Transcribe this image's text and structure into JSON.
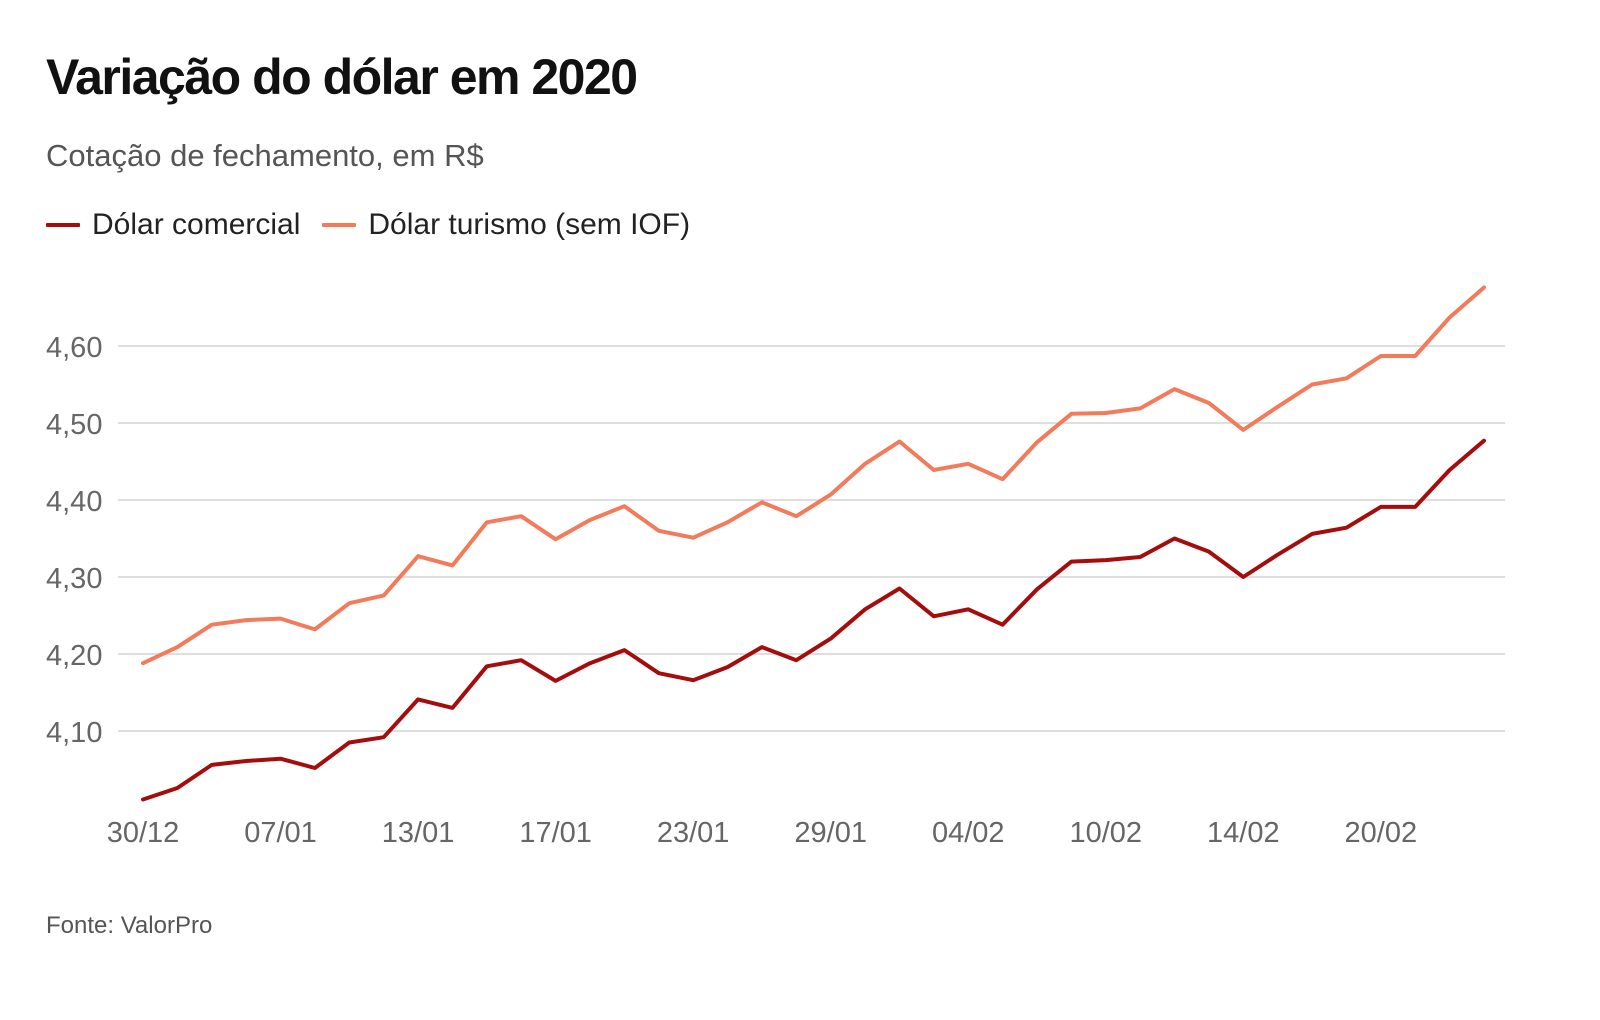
{
  "title": "Variação do dólar em 2020",
  "subtitle": "Cotação de fechamento, em R$",
  "source": "Fonte: ValorPro",
  "colors": {
    "comercial": "#a50d0d",
    "turismo": "#f47a5c",
    "grid": "#d3d3d3",
    "tick_text": "#666666"
  },
  "legend": {
    "items": [
      {
        "label": "Dólar comercial",
        "color": "#a50d0d"
      },
      {
        "label": "Dólar turismo (sem IOF)",
        "color": "#f47a5c"
      }
    ]
  },
  "chart_data": {
    "type": "line",
    "title": "Variação do dólar em 2020",
    "subtitle": "Cotação de fechamento, em R$",
    "xlabel": "",
    "ylabel": "",
    "grid": true,
    "legend_position": "top-left",
    "ylim": [
      4.0,
      4.68
    ],
    "y_ticks": [
      4.1,
      4.2,
      4.3,
      4.4,
      4.5,
      4.6
    ],
    "y_tick_labels": [
      "4,10",
      "4,20",
      "4,30",
      "4,40",
      "4,50",
      "4,60"
    ],
    "x_tick_labels": [
      "30/12",
      "07/01",
      "13/01",
      "17/01",
      "23/01",
      "29/01",
      "04/02",
      "10/02",
      "14/02",
      "20/02"
    ],
    "x_tick_indices": [
      0,
      4,
      8,
      12,
      16,
      20,
      24,
      28,
      32,
      36
    ],
    "x": [
      "30/12",
      "31/12",
      "02/01",
      "03/01",
      "07/01",
      "08/01",
      "09/01",
      "10/01",
      "13/01",
      "14/01",
      "15/01",
      "16/01",
      "17/01",
      "20/01",
      "21/01",
      "22/01",
      "23/01",
      "24/01",
      "27/01",
      "28/01",
      "29/01",
      "30/01",
      "31/01",
      "03/02",
      "04/02",
      "05/02",
      "06/02",
      "07/02",
      "10/02",
      "11/02",
      "12/02",
      "13/02",
      "14/02",
      "17/02",
      "18/02",
      "19/02",
      "20/02",
      "21/02",
      "25/02",
      "26/02"
    ],
    "series": [
      {
        "name": "Dólar comercial",
        "color": "#a50d0d",
        "values": [
          4.011,
          4.026,
          4.056,
          4.061,
          4.064,
          4.052,
          4.085,
          4.092,
          4.141,
          4.13,
          4.184,
          4.192,
          4.165,
          4.188,
          4.205,
          4.175,
          4.166,
          4.183,
          4.209,
          4.192,
          4.22,
          4.258,
          4.285,
          4.249,
          4.258,
          4.238,
          4.284,
          4.32,
          4.322,
          4.326,
          4.35,
          4.333,
          4.3,
          4.329,
          4.356,
          4.364,
          4.391,
          4.391,
          4.439,
          4.477
        ]
      },
      {
        "name": "Dólar turismo (sem IOF)",
        "color": "#f47a5c",
        "values": [
          4.188,
          4.209,
          4.238,
          4.244,
          4.246,
          4.232,
          4.266,
          4.276,
          4.327,
          4.315,
          4.371,
          4.379,
          4.349,
          4.374,
          4.392,
          4.36,
          4.351,
          4.371,
          4.397,
          4.379,
          4.407,
          4.447,
          4.476,
          4.439,
          4.447,
          4.427,
          4.475,
          4.512,
          4.513,
          4.519,
          4.544,
          4.526,
          4.491,
          4.521,
          4.55,
          4.558,
          4.587,
          4.587,
          4.637,
          4.676
        ]
      }
    ]
  }
}
